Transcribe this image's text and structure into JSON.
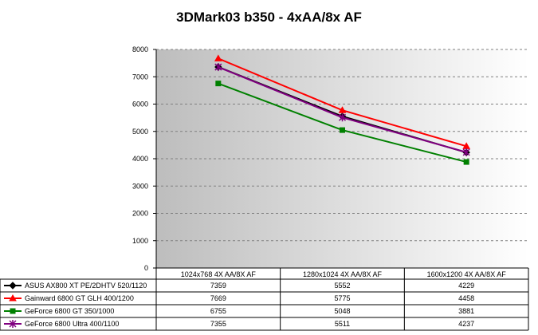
{
  "chart_data": {
    "type": "line",
    "title": "3DMark03 b350 - 4xAA/8x AF",
    "categories": [
      "1024x768 4X AA/8X AF",
      "1280x1024 4X AA/8X AF",
      "1600x1200 4X AA/8X AF"
    ],
    "ylim": [
      0,
      8000
    ],
    "yticks": [
      0,
      1000,
      2000,
      3000,
      4000,
      5000,
      6000,
      7000,
      8000
    ],
    "grid": true,
    "legend_placement": "bottom data table",
    "series": [
      {
        "name": "ASUS AX800 XT PE/2DHTV 520/1120",
        "values": [
          7359,
          5552,
          4229
        ],
        "color": "#000000",
        "marker": "diamond"
      },
      {
        "name": "Gainward 6800 GT GLH 400/1200",
        "values": [
          7669,
          5775,
          4458
        ],
        "color": "#ff0000",
        "marker": "triangle"
      },
      {
        "name": "GeForce 6800 GT 350/1000",
        "values": [
          6755,
          5048,
          3881
        ],
        "color": "#008000",
        "marker": "square"
      },
      {
        "name": "GeForce 6800 Ultra 400/1100",
        "values": [
          7355,
          5511,
          4237
        ],
        "color": "#800080",
        "marker": "star"
      }
    ]
  }
}
